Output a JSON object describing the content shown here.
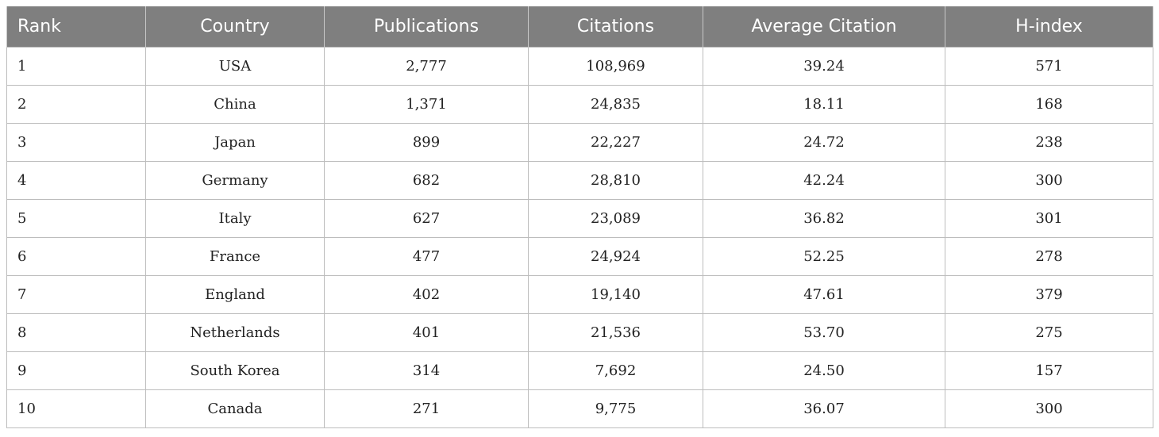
{
  "table": {
    "headers": {
      "rank": "Rank",
      "country": "Country",
      "publications": "Publications",
      "citations": "Citations",
      "average_citation": "Average Citation",
      "h_index": "H-index"
    },
    "rows": [
      {
        "rank": "1",
        "country": "USA",
        "publications": "2,777",
        "citations": "108,969",
        "average_citation": "39.24",
        "h_index": "571"
      },
      {
        "rank": "2",
        "country": "China",
        "publications": "1,371",
        "citations": "24,835",
        "average_citation": "18.11",
        "h_index": "168"
      },
      {
        "rank": "3",
        "country": "Japan",
        "publications": "899",
        "citations": "22,227",
        "average_citation": "24.72",
        "h_index": "238"
      },
      {
        "rank": "4",
        "country": "Germany",
        "publications": "682",
        "citations": "28,810",
        "average_citation": "42.24",
        "h_index": "300"
      },
      {
        "rank": "5",
        "country": "Italy",
        "publications": "627",
        "citations": "23,089",
        "average_citation": "36.82",
        "h_index": "301"
      },
      {
        "rank": "6",
        "country": "France",
        "publications": "477",
        "citations": "24,924",
        "average_citation": "52.25",
        "h_index": "278"
      },
      {
        "rank": "7",
        "country": "England",
        "publications": "402",
        "citations": "19,140",
        "average_citation": "47.61",
        "h_index": "379"
      },
      {
        "rank": "8",
        "country": "Netherlands",
        "publications": "401",
        "citations": "21,536",
        "average_citation": "53.70",
        "h_index": "275"
      },
      {
        "rank": "9",
        "country": "South Korea",
        "publications": "314",
        "citations": "7,692",
        "average_citation": "24.50",
        "h_index": "157"
      },
      {
        "rank": "10",
        "country": "Canada",
        "publications": "271",
        "citations": "9,775",
        "average_citation": "36.07",
        "h_index": "300"
      }
    ]
  }
}
